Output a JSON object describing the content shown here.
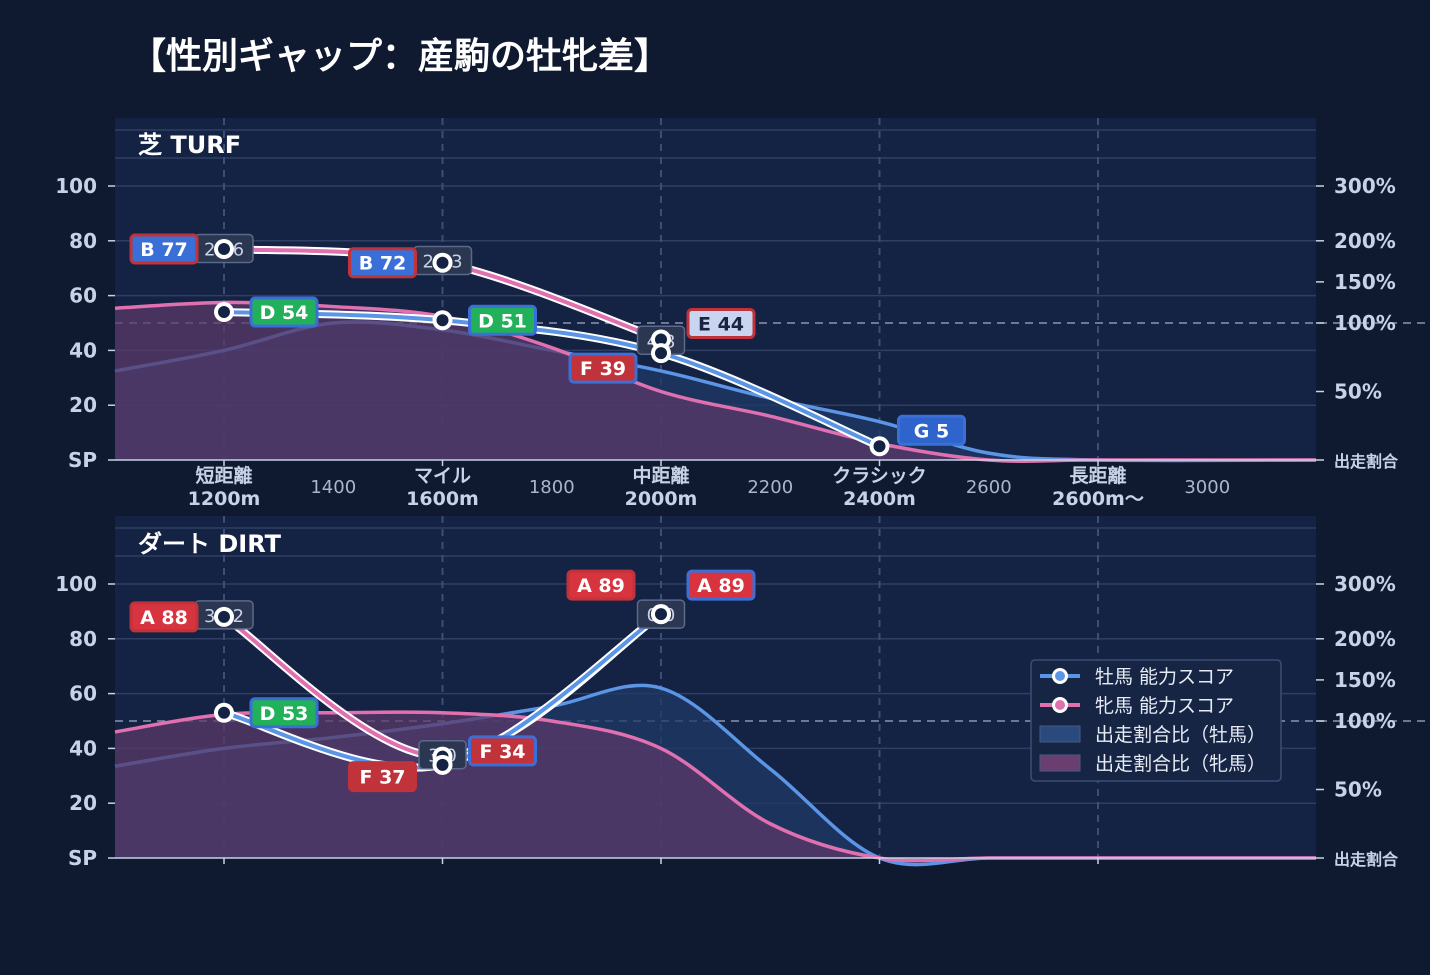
{
  "page": {
    "title": "【性別ギャップ：産駒の牡牝差】"
  },
  "colors": {
    "male": "#5b95e6",
    "female": "#e070b0",
    "male_fill": "#1f3a66",
    "female_fill": "#5a3a68",
    "grid": "#2e3f63",
    "panel_bg": "#142243",
    "grade": {
      "A": "#d83440",
      "B": "#3b6fd8",
      "C": "#eab23a",
      "D": "#22b05a",
      "E": "#c8d4f0",
      "F": "#c0333a",
      "G": "#2f64cc"
    }
  },
  "chart_data": [
    {
      "type": "line",
      "title": "芝 TURF",
      "x": [
        1200,
        1600,
        2000,
        2400
      ],
      "x_major_ticks": [
        {
          "value": 1200,
          "label1": "短距離",
          "label2": "1200m"
        },
        {
          "value": 1600,
          "label1": "マイル",
          "label2": "1600m"
        },
        {
          "value": 2000,
          "label1": "中距離",
          "label2": "2000m"
        },
        {
          "value": 2400,
          "label1": "クラシック",
          "label2": "2400m"
        },
        {
          "value": 2800,
          "label1": "長距離",
          "label2": "2600m〜"
        }
      ],
      "x_minor_ticks": [
        "1400",
        "1800",
        "2200",
        "2600",
        "3000"
      ],
      "y_ticks": [
        "SP",
        "20",
        "40",
        "60",
        "80",
        "100"
      ],
      "y2_ticks": [
        "出走割合",
        "50%",
        "100%",
        "150%",
        "200%",
        "300%"
      ],
      "series": [
        {
          "name": "牡馬 能力スコア",
          "values": [
            54,
            51,
            39,
            5
          ],
          "grades": [
            "D 54",
            "D 51",
            "F 39",
            "G 5"
          ]
        },
        {
          "name": "牝馬 能力スコア",
          "values": [
            77,
            72,
            44,
            null
          ],
          "grades": [
            "B 77",
            "B 72",
            "E 44",
            ""
          ]
        }
      ],
      "diff_labels": [
        "22.6",
        "21.3",
        "4.8",
        ""
      ],
      "share_ratio_male_pct": [
        65,
        80,
        100,
        95,
        80,
        65,
        45,
        28,
        5,
        0,
        0
      ],
      "share_ratio_female_pct": [
        118,
        125,
        120,
        108,
        82,
        50,
        32,
        12,
        0,
        0,
        0
      ]
    },
    {
      "type": "line",
      "title": "ダート DIRT",
      "x": [
        1200,
        1600,
        2000
      ],
      "x_major_ticks": [],
      "x_minor_ticks": [],
      "y_ticks": [
        "SP",
        "20",
        "40",
        "60",
        "80",
        "100"
      ],
      "y2_ticks": [
        "出走割合",
        "50%",
        "100%",
        "150%",
        "200%",
        "300%"
      ],
      "series": [
        {
          "name": "牡馬 能力スコア",
          "values": [
            53,
            34,
            89
          ],
          "grades": [
            "D 53",
            "F 34",
            "A 89"
          ]
        },
        {
          "name": "牝馬 能力スコア",
          "values": [
            88,
            37,
            89
          ],
          "grades": [
            "A 88",
            "F 37",
            "A 89"
          ]
        }
      ],
      "diff_labels": [
        "35.2",
        "3.0",
        "0.0"
      ],
      "share_ratio_male_pct": [
        67,
        80,
        88,
        98,
        118,
        140,
        65,
        0,
        0,
        0,
        0
      ],
      "share_ratio_female_pct": [
        92,
        108,
        110,
        110,
        100,
        80,
        25,
        0,
        0,
        0,
        0
      ]
    }
  ],
  "legend": {
    "items": [
      {
        "label": "牡馬 能力スコア",
        "kind": "line",
        "color": "#5b95e6"
      },
      {
        "label": "牝馬 能力スコア",
        "kind": "line",
        "color": "#e070b0"
      },
      {
        "label": "出走割合比（牡馬）",
        "kind": "box",
        "color": "#2a4a7e"
      },
      {
        "label": "出走割合比（牝馬）",
        "kind": "box",
        "color": "#6a3f70"
      }
    ]
  }
}
